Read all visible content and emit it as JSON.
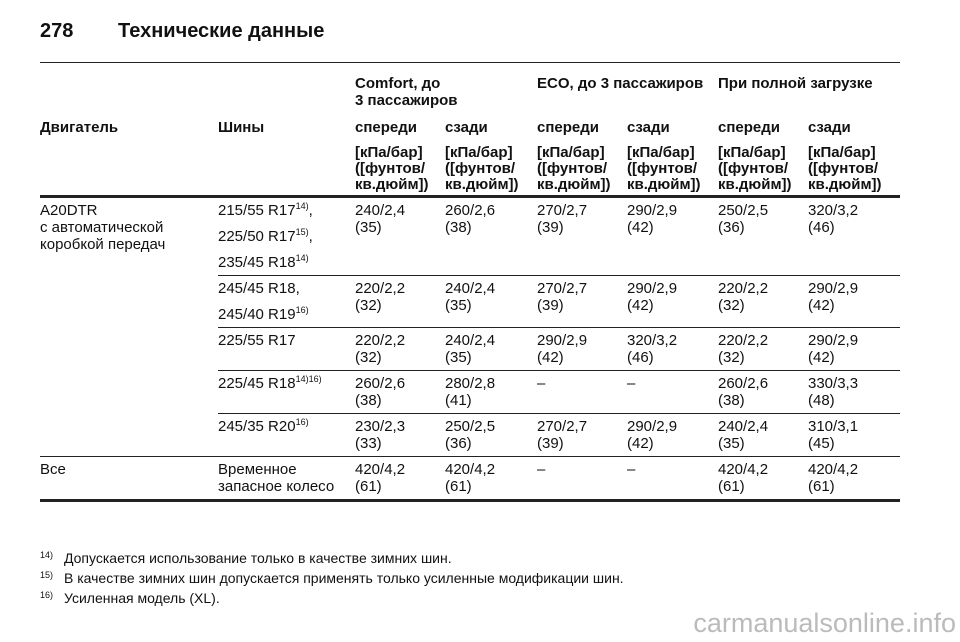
{
  "header": {
    "page": "278",
    "title": "Технические данные"
  },
  "table": {
    "group_headers": [
      "Comfort, до\n3 пассажиров",
      "ECO, до 3 пассажиров",
      "При полной загрузке"
    ],
    "column_headers": [
      "Двигатель",
      "Шины",
      "спереди",
      "сзади",
      "спереди",
      "сзади",
      "спереди",
      "сзади"
    ],
    "unit": "[кПа/бар]\n([фунтов/\nкв.дюйм])",
    "groups": [
      {
        "engine": "A20DTR\nс автоматической\nкоробкой передач",
        "rows": [
          {
            "tires": [
              {
                "text": "215/55 R17",
                "sup": "14)",
                "tail": ","
              },
              {
                "text": "225/50 R17",
                "sup": "15)",
                "tail": ","
              },
              {
                "text": "235/45 R18",
                "sup": "14)"
              }
            ],
            "values": [
              [
                "240/2,4",
                "(35)"
              ],
              [
                "260/2,6",
                "(38)"
              ],
              [
                "270/2,7",
                "(39)"
              ],
              [
                "290/2,9",
                "(42)"
              ],
              [
                "250/2,5",
                "(36)"
              ],
              [
                "320/3,2",
                "(46)"
              ]
            ]
          },
          {
            "tires": [
              {
                "text": "245/45 R18,"
              },
              {
                "text": "245/40 R19",
                "sup": "16)"
              }
            ],
            "values": [
              [
                "220/2,2",
                "(32)"
              ],
              [
                "240/2,4",
                "(35)"
              ],
              [
                "270/2,7",
                "(39)"
              ],
              [
                "290/2,9",
                "(42)"
              ],
              [
                "220/2,2",
                "(32)"
              ],
              [
                "290/2,9",
                "(42)"
              ]
            ]
          },
          {
            "tires": [
              {
                "text": "225/55 R17"
              }
            ],
            "values": [
              [
                "220/2,2",
                "(32)"
              ],
              [
                "240/2,4",
                "(35)"
              ],
              [
                "290/2,9",
                "(42)"
              ],
              [
                "320/3,2",
                "(46)"
              ],
              [
                "220/2,2",
                "(32)"
              ],
              [
                "290/2,9",
                "(42)"
              ]
            ]
          },
          {
            "tires": [
              {
                "text": "225/45 R18",
                "sup": "14)16)"
              }
            ],
            "values": [
              [
                "260/2,6",
                "(38)"
              ],
              [
                "280/2,8",
                "(41)"
              ],
              [
                "–"
              ],
              [
                "–"
              ],
              [
                "260/2,6",
                "(38)"
              ],
              [
                "330/3,3",
                "(48)"
              ]
            ]
          },
          {
            "tires": [
              {
                "text": "245/35 R20",
                "sup": "16)"
              }
            ],
            "values": [
              [
                "230/2,3",
                "(33)"
              ],
              [
                "250/2,5",
                "(36)"
              ],
              [
                "270/2,7",
                "(39)"
              ],
              [
                "290/2,9",
                "(42)"
              ],
              [
                "240/2,4",
                "(35)"
              ],
              [
                "310/3,1",
                "(45)"
              ]
            ]
          }
        ]
      },
      {
        "engine": "Все",
        "rows": [
          {
            "tires": [
              {
                "text": "Временное\nзапасное колесо"
              }
            ],
            "values": [
              [
                "420/4,2",
                "(61)"
              ],
              [
                "420/4,2",
                "(61)"
              ],
              [
                "–"
              ],
              [
                "–"
              ],
              [
                "420/4,2",
                "(61)"
              ],
              [
                "420/4,2",
                "(61)"
              ]
            ]
          }
        ]
      }
    ]
  },
  "footnotes": [
    {
      "mark": "14)",
      "text": "Допускается использование только в качестве зимних шин."
    },
    {
      "mark": "15)",
      "text": "В качестве зимних шин допускается применять только усиленные модификации шин."
    },
    {
      "mark": "16)",
      "text": "Усиленная модель (XL)."
    }
  ],
  "watermark": "carmanualsonline.info"
}
